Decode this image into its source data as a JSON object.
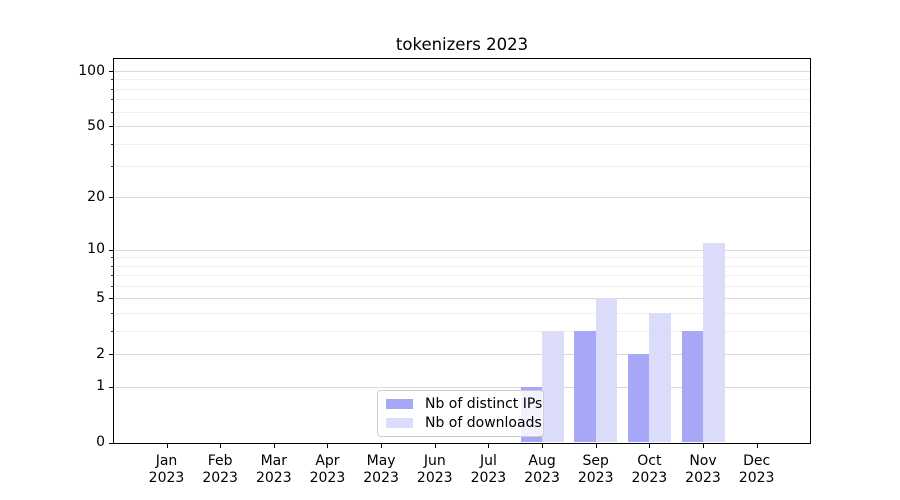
{
  "chart_data": {
    "type": "bar",
    "title": "tokenizers 2023",
    "x_tick_line1": [
      "Jan",
      "Feb",
      "Mar",
      "Apr",
      "May",
      "Jun",
      "Jul",
      "Aug",
      "Sep",
      "Oct",
      "Nov",
      "Dec"
    ],
    "x_tick_line2": "2023",
    "categories": [
      "Jan 2023",
      "Feb 2023",
      "Mar 2023",
      "Apr 2023",
      "May 2023",
      "Jun 2023",
      "Jul 2023",
      "Aug 2023",
      "Sep 2023",
      "Oct 2023",
      "Nov 2023",
      "Dec 2023"
    ],
    "series": [
      {
        "name": "Nb of distinct IPs",
        "color": "#a7a7f7",
        "values": [
          0,
          0,
          0,
          0,
          0,
          0,
          0,
          1,
          3,
          2,
          3,
          0
        ]
      },
      {
        "name": "Nb of downloads",
        "color": "#dbdbfa",
        "values": [
          0,
          0,
          0,
          0,
          0,
          0,
          0,
          3,
          5,
          4,
          11,
          0
        ]
      }
    ],
    "yscale": "log1p",
    "ylim": [
      0,
      118
    ],
    "yticks_major": [
      0,
      1,
      2,
      5,
      10,
      20,
      50,
      100
    ],
    "yticks_minor": [
      3,
      4,
      6,
      7,
      8,
      9,
      30,
      40,
      60,
      70,
      80,
      90
    ],
    "grid": "horizontal-only",
    "legend_position": "lower-center-inside",
    "colors": {
      "grid_major": "#d9d9d9",
      "grid_minor": "#efefef",
      "spine": "#000000",
      "text": "#000000",
      "background": "#ffffff"
    }
  }
}
